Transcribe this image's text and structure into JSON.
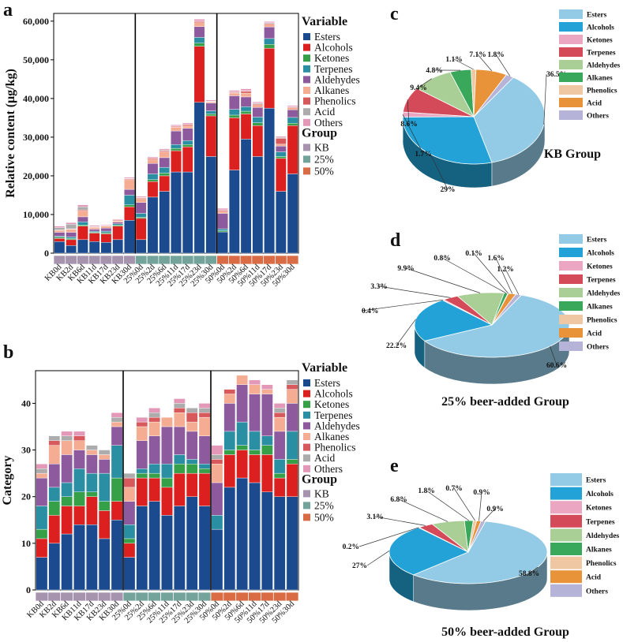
{
  "colors": {
    "bar": {
      "Esters": "#1b4a8e",
      "Alcohols": "#dc1f1f",
      "Ketones": "#35a047",
      "Terpenes": "#2b8fa3",
      "Aldehydes": "#8d5a9e",
      "Alkanes": "#f4ad93",
      "Phenolics": "#d8595c",
      "Acid": "#acacac",
      "Others": "#e398b8"
    },
    "group": {
      "KB": "#a693ae",
      "25%": "#74a39b",
      "50%": "#d96c45"
    },
    "pie": {
      "Esters": "#93cbe6",
      "Alcohols": "#22a2d6",
      "Ketones": "#eba7c2",
      "Terpenes": "#d54a59",
      "Aldehydes": "#a9cf96",
      "Alkanes": "#3aa85b",
      "Phenolics": "#efc7a2",
      "Acid": "#e8923a",
      "Others": "#b6b3d8"
    }
  },
  "legend": {
    "variable_title": "Variable",
    "variable_items": [
      "Esters",
      "Alcohols",
      "Ketones",
      "Terpenes",
      "Aldehydes",
      "Alkanes",
      "Phenolics",
      "Acid",
      "Others"
    ],
    "group_title": "Group",
    "group_items": [
      "KB",
      "25%",
      "50%"
    ]
  },
  "chart_data": [
    {
      "panel": "a",
      "type": "bar",
      "stacked": true,
      "ylabel": "Relative content (μg/kg)",
      "ylim": [
        0,
        62000
      ],
      "yticks": [
        "0",
        "10,000",
        "20,000",
        "30,000",
        "40,000",
        "50,000",
        "60,000"
      ],
      "ytick_values": [
        0,
        10000,
        20000,
        30000,
        40000,
        50000,
        60000
      ],
      "categories": [
        "KB0d",
        "KB2d",
        "KB6d",
        "KB11d",
        "KB17d",
        "KB23d",
        "KB30d",
        "25%0d",
        "25%2d",
        "25%6d",
        "25%11d",
        "25%17d",
        "25%23d",
        "25%30d",
        "50%0d",
        "50%2d",
        "50%6d",
        "50%11d",
        "50%17d",
        "50%23d",
        "50%30d"
      ],
      "groups": [
        "KB",
        "KB",
        "KB",
        "KB",
        "KB",
        "KB",
        "KB",
        "25%",
        "25%",
        "25%",
        "25%",
        "25%",
        "25%",
        "25%",
        "50%",
        "50%",
        "50%",
        "50%",
        "50%",
        "50%",
        "50%"
      ],
      "series": [
        {
          "name": "Esters",
          "values": [
            3000,
            2000,
            3500,
            3000,
            2800,
            3500,
            8500,
            3500,
            14500,
            16000,
            21000,
            21000,
            39000,
            25000,
            5500,
            21500,
            29500,
            25000,
            37500,
            16000,
            20500
          ]
        },
        {
          "name": "Alcohols",
          "values": [
            800,
            1500,
            3500,
            2200,
            2200,
            3500,
            3500,
            5500,
            4000,
            4000,
            5500,
            6500,
            14500,
            10500,
            0,
            13500,
            6500,
            8000,
            15500,
            8500,
            12500
          ]
        },
        {
          "name": "Ketones",
          "values": [
            300,
            300,
            300,
            200,
            300,
            300,
            500,
            300,
            500,
            700,
            600,
            600,
            800,
            500,
            300,
            700,
            700,
            700,
            1000,
            500,
            600
          ]
        },
        {
          "name": "Terpenes",
          "values": [
            300,
            400,
            800,
            300,
            400,
            300,
            2500,
            1000,
            1500,
            1500,
            1000,
            1000,
            1500,
            800,
            500,
            1500,
            1200,
            1500,
            1500,
            1200,
            1500
          ]
        },
        {
          "name": "Aldehydes",
          "values": [
            1000,
            1200,
            1300,
            500,
            800,
            400,
            1500,
            2800,
            2700,
            2500,
            3500,
            3200,
            2800,
            2000,
            4000,
            3500,
            2500,
            2500,
            3000,
            1500,
            2000
          ]
        },
        {
          "name": "Alkanes",
          "values": [
            500,
            800,
            1500,
            500,
            500,
            300,
            2500,
            1000,
            1000,
            1500,
            1000,
            700,
            1000,
            300,
            500,
            700,
            1000,
            700,
            700,
            500,
            500
          ]
        },
        {
          "name": "Phenolics",
          "values": [
            100,
            100,
            300,
            100,
            100,
            200,
            200,
            200,
            300,
            300,
            200,
            300,
            300,
            100,
            300,
            200,
            500,
            200,
            200,
            1500,
            200
          ]
        },
        {
          "name": "Acid",
          "values": [
            600,
            1200,
            800,
            100,
            100,
            100,
            100,
            100,
            100,
            200,
            100,
            100,
            100,
            100,
            100,
            100,
            100,
            200,
            200,
            200,
            100
          ]
        },
        {
          "name": "Others",
          "values": [
            400,
            400,
            500,
            300,
            200,
            200,
            300,
            300,
            300,
            300,
            300,
            300,
            500,
            300,
            400,
            400,
            500,
            300,
            300,
            300,
            300
          ]
        }
      ]
    },
    {
      "panel": "b",
      "type": "bar",
      "stacked": true,
      "ylabel": "Category",
      "ylim": [
        0,
        47
      ],
      "yticks": [
        "0",
        "10",
        "20",
        "30",
        "40"
      ],
      "ytick_values": [
        0,
        10,
        20,
        30,
        40
      ],
      "categories": [
        "KB0d",
        "KB2d",
        "KB6d",
        "KB11d",
        "KB17d",
        "KB23d",
        "KB30d",
        "25%0d",
        "25%2d",
        "25%6d",
        "25%11d",
        "25%17d",
        "25%23d",
        "25%30d",
        "50%0d",
        "50%2d",
        "50%6d",
        "50%11d",
        "50%17d",
        "50%23d",
        "50%30d"
      ],
      "groups": [
        "KB",
        "KB",
        "KB",
        "KB",
        "KB",
        "KB",
        "KB",
        "25%",
        "25%",
        "25%",
        "25%",
        "25%",
        "25%",
        "25%",
        "50%",
        "50%",
        "50%",
        "50%",
        "50%",
        "50%",
        "50%"
      ],
      "series": [
        {
          "name": "Esters",
          "values": [
            7,
            10,
            12,
            14,
            14,
            11,
            15,
            7,
            18,
            19,
            16,
            18,
            20,
            18,
            13,
            22,
            24,
            23,
            21,
            20,
            20
          ]
        },
        {
          "name": "Alcohols",
          "values": [
            4,
            6,
            6,
            4,
            6,
            6,
            4,
            3,
            6,
            5,
            6,
            7,
            5,
            7,
            0,
            7,
            6,
            6,
            8,
            4,
            7
          ]
        },
        {
          "name": "Ketones",
          "values": [
            2,
            3,
            2,
            3,
            1,
            2,
            5,
            1,
            1,
            1,
            2,
            2,
            2,
            1,
            0,
            1,
            1,
            1,
            2,
            1,
            1
          ]
        },
        {
          "name": "Terpenes",
          "values": [
            5,
            3,
            3,
            5,
            4,
            6,
            7,
            3,
            1,
            2,
            3,
            2,
            1,
            1,
            3,
            4,
            5,
            4,
            2,
            3,
            6
          ]
        },
        {
          "name": "Aldehydes",
          "values": [
            6,
            5,
            6,
            4,
            4,
            3,
            4,
            5,
            6,
            6,
            8,
            6,
            6,
            6,
            7,
            6,
            8,
            8,
            9,
            6,
            6
          ]
        },
        {
          "name": "Alkanes",
          "values": [
            1,
            4,
            3,
            2,
            1,
            1,
            1,
            3,
            3,
            3,
            2,
            3,
            2,
            4,
            4,
            2,
            2,
            2,
            1,
            3,
            3
          ]
        },
        {
          "name": "Phenolics",
          "values": [
            0,
            1,
            0,
            1,
            0,
            0,
            0,
            2,
            1,
            1,
            0,
            1,
            2,
            1,
            1,
            1,
            0,
            0,
            0,
            1,
            1
          ]
        },
        {
          "name": "Acid",
          "values": [
            1,
            1,
            1,
            0,
            1,
            1,
            1,
            1,
            0,
            1,
            0,
            1,
            1,
            1,
            1,
            0,
            0,
            0,
            0,
            1,
            1
          ]
        },
        {
          "name": "Others",
          "values": [
            1,
            0,
            1,
            1,
            0,
            0,
            1,
            0,
            1,
            1,
            0,
            1,
            0,
            1,
            2,
            0,
            0,
            1,
            1,
            1,
            0
          ]
        }
      ]
    },
    {
      "panel": "c",
      "type": "pie",
      "title": "KB Group",
      "labels": [
        "Esters",
        "Alcohols",
        "Ketones",
        "Terpenes",
        "Aldehydes",
        "Alkanes",
        "Phenolics",
        "Acid",
        "Others"
      ],
      "values": [
        36.5,
        29,
        1.7,
        8.6,
        9.4,
        4.8,
        1.1,
        7.1,
        1.8
      ],
      "value_labels": [
        "36.5%",
        "29%",
        "1.7%",
        "8.6%",
        "9.4%",
        "4.8%",
        "1.1%",
        "7.1%",
        "1.8%"
      ]
    },
    {
      "panel": "d",
      "type": "pie",
      "title": "25% beer-added Group",
      "labels": [
        "Esters",
        "Alcohols",
        "Ketones",
        "Terpenes",
        "Aldehydes",
        "Alkanes",
        "Phenolics",
        "Acid",
        "Others"
      ],
      "values": [
        60.6,
        22.2,
        0.4,
        3.3,
        9.9,
        0.8,
        0.1,
        1.6,
        1.2
      ],
      "value_labels": [
        "60.6%",
        "22.2%",
        "0.4%",
        "3.3%",
        "9.9%",
        "0.8%",
        "0.1%",
        "1.6%",
        "1.2%"
      ]
    },
    {
      "panel": "e",
      "type": "pie",
      "title": "50% beer-added Group",
      "labels": [
        "Esters",
        "Alcohols",
        "Ketones",
        "Terpenes",
        "Aldehydes",
        "Alkanes",
        "Phenolics",
        "Acid",
        "Others"
      ],
      "values": [
        58.8,
        27,
        0.2,
        3.1,
        6.8,
        1.8,
        0.7,
        0.9,
        0.9
      ],
      "value_labels": [
        "58.8%",
        "27%",
        "0.2%",
        "3.1%",
        "6.8%",
        "1.8%",
        "0.7%",
        "0.9%",
        "0.9%"
      ]
    }
  ]
}
